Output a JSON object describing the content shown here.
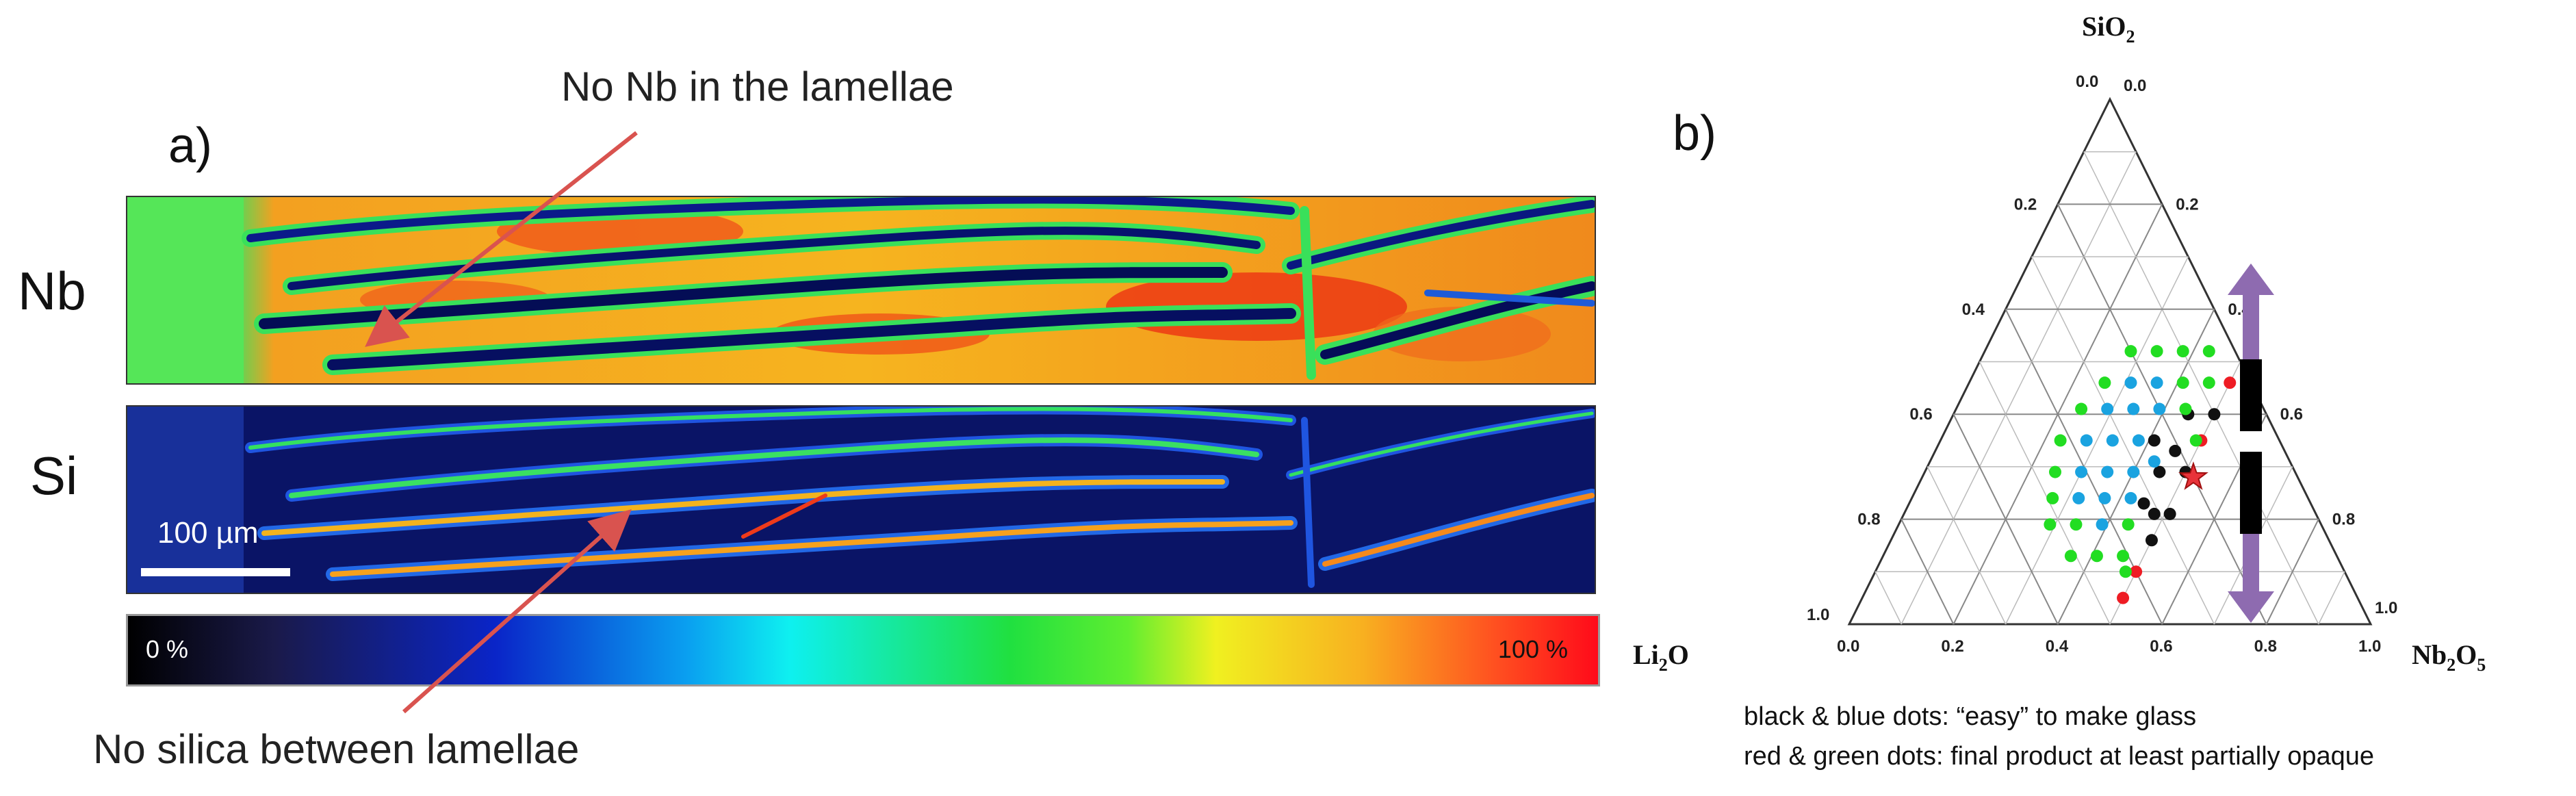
{
  "annotations": {
    "top_callout": "No Nb in the lamellae",
    "bottom_callout": "No silica between lamellae",
    "arrow_color": "#d9534f"
  },
  "panel_a": {
    "label": "a)",
    "row_nb": "Nb",
    "row_si": "Si",
    "scale_bar_text": "100 µm",
    "colorbar_min": "0 %",
    "colorbar_max": "100 %"
  },
  "panel_b": {
    "label": "b)",
    "vertex_top": "SiO",
    "vertex_top_sub": "2",
    "vertex_left": "Li",
    "vertex_left_sub": "2",
    "vertex_left_tail": "O",
    "vertex_right": "Nb",
    "vertex_right_sub": "2",
    "vertex_right_tail": "O",
    "vertex_right_sub2": "5",
    "bottom_ticks": [
      "0.0",
      "0.2",
      "0.4",
      "0.6",
      "0.8",
      "1.0"
    ],
    "left_ticks": [
      "1.0",
      "0.8",
      "0.6",
      "0.4",
      "0.2",
      "0.0"
    ],
    "right_ticks": [
      "1.0",
      "0.8",
      "0.6",
      "0.4",
      "0.2",
      "0.0"
    ],
    "legend_line_1": "black & blue dots:  “easy” to make glass",
    "legend_line_2": "red & green dots:  final product at least partially opaque",
    "colors": {
      "black": "#111111",
      "blue": "#1aa3e0",
      "red": "#ee1c24",
      "green": "#22dd22",
      "arrow": "#8e6bb0",
      "star": "#e8333a"
    }
  },
  "chart_data": {
    "type": "scatter",
    "coordinate_system": "ternary",
    "components": [
      "SiO2",
      "Li2O",
      "Nb2O5"
    ],
    "points_bottom_nb_frac_left_sio2": "",
    "series": [
      {
        "color": "black",
        "points": [
          [
            0.41,
            0.35
          ],
          [
            0.45,
            0.4
          ],
          [
            0.46,
            0.33
          ],
          [
            0.5,
            0.4
          ],
          [
            0.45,
            0.29
          ],
          [
            0.5,
            0.29
          ],
          [
            0.45,
            0.23
          ],
          [
            0.48,
            0.21
          ],
          [
            0.51,
            0.21
          ],
          [
            0.5,
            0.16
          ]
        ]
      },
      {
        "color": "blue",
        "points": [
          [
            0.31,
            0.46
          ],
          [
            0.36,
            0.46
          ],
          [
            0.29,
            0.41
          ],
          [
            0.34,
            0.41
          ],
          [
            0.39,
            0.41
          ],
          [
            0.28,
            0.35
          ],
          [
            0.33,
            0.35
          ],
          [
            0.38,
            0.35
          ],
          [
            0.3,
            0.29
          ],
          [
            0.35,
            0.29
          ],
          [
            0.4,
            0.29
          ],
          [
            0.43,
            0.31
          ],
          [
            0.32,
            0.24
          ],
          [
            0.37,
            0.24
          ],
          [
            0.42,
            0.24
          ],
          [
            0.39,
            0.19
          ]
        ]
      },
      {
        "color": "red",
        "points": [
          [
            0.5,
            0.46
          ],
          [
            0.5,
            0.35
          ],
          [
            0.5,
            0.1
          ],
          [
            0.5,
            0.05
          ]
        ]
      },
      {
        "color": "green",
        "points": [
          [
            0.28,
            0.52
          ],
          [
            0.33,
            0.52
          ],
          [
            0.38,
            0.52
          ],
          [
            0.43,
            0.52
          ],
          [
            0.26,
            0.46
          ],
          [
            0.41,
            0.46
          ],
          [
            0.46,
            0.46
          ],
          [
            0.24,
            0.41
          ],
          [
            0.44,
            0.41
          ],
          [
            0.49,
            0.35
          ],
          [
            0.23,
            0.35
          ],
          [
            0.25,
            0.29
          ],
          [
            0.27,
            0.24
          ],
          [
            0.29,
            0.19
          ],
          [
            0.34,
            0.19
          ],
          [
            0.44,
            0.19
          ],
          [
            0.36,
            0.13
          ],
          [
            0.41,
            0.13
          ],
          [
            0.46,
            0.13
          ],
          [
            0.48,
            0.1
          ]
        ]
      }
    ],
    "star": [
      0.52,
      0.28
    ]
  }
}
